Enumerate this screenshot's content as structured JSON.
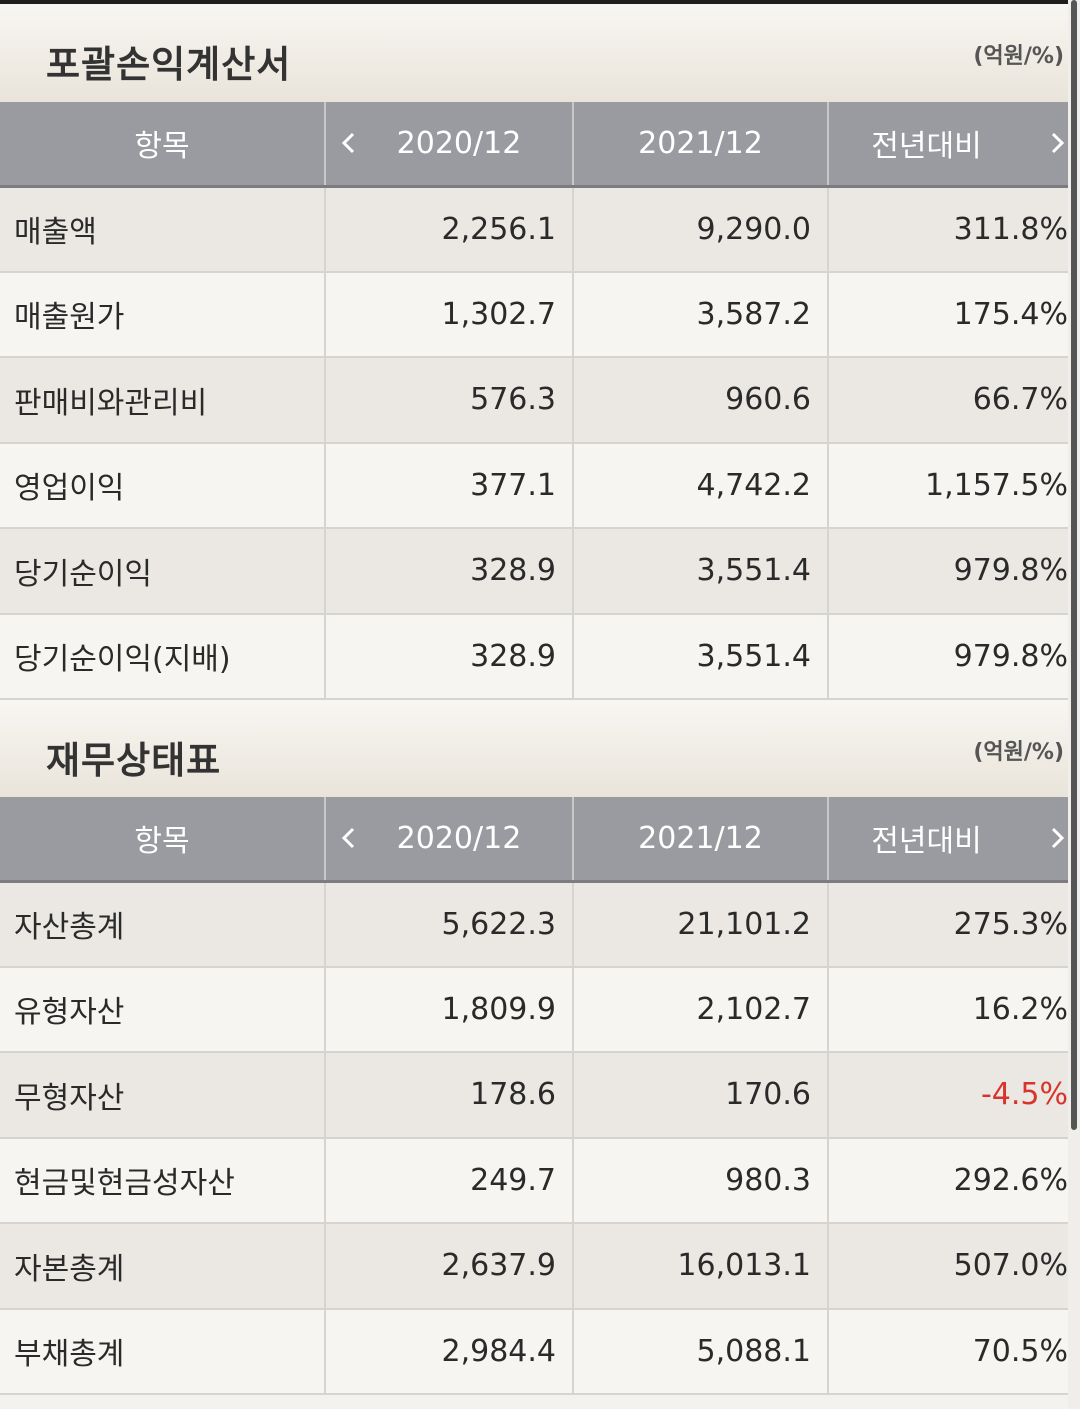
{
  "sections": [
    {
      "title": "포괄손익계산서",
      "unit": "(억원/%)",
      "headers": [
        "항목",
        "2020/12",
        "2021/12",
        "전년대비"
      ],
      "rows": [
        {
          "item": "매출액",
          "y2020": "2,256.1",
          "y2021": "9,290.0",
          "yoy": "311.8%"
        },
        {
          "item": "매출원가",
          "y2020": "1,302.7",
          "y2021": "3,587.2",
          "yoy": "175.4%"
        },
        {
          "item": "판매비와관리비",
          "y2020": "576.3",
          "y2021": "960.6",
          "yoy": "66.7%"
        },
        {
          "item": "영업이익",
          "y2020": "377.1",
          "y2021": "4,742.2",
          "yoy": "1,157.5%"
        },
        {
          "item": "당기순이익",
          "y2020": "328.9",
          "y2021": "3,551.4",
          "yoy": "979.8%"
        },
        {
          "item": "당기순이익(지배)",
          "y2020": "328.9",
          "y2021": "3,551.4",
          "yoy": "979.8%"
        }
      ]
    },
    {
      "title": "재무상태표",
      "unit": "(억원/%)",
      "headers": [
        "항목",
        "2020/12",
        "2021/12",
        "전년대비"
      ],
      "rows": [
        {
          "item": "자산총계",
          "y2020": "5,622.3",
          "y2021": "21,101.2",
          "yoy": "275.3%"
        },
        {
          "item": "유형자산",
          "y2020": "1,809.9",
          "y2021": "2,102.7",
          "yoy": "16.2%"
        },
        {
          "item": "무형자산",
          "y2020": "178.6",
          "y2021": "170.6",
          "yoy": "-4.5%"
        },
        {
          "item": "현금및현금성자산",
          "y2020": "249.7",
          "y2021": "980.3",
          "yoy": "292.6%"
        },
        {
          "item": "자본총계",
          "y2020": "2,637.9",
          "y2021": "16,013.1",
          "yoy": "507.0%"
        },
        {
          "item": "부채총계",
          "y2020": "2,984.4",
          "y2021": "5,088.1",
          "yoy": "70.5%"
        }
      ]
    }
  ],
  "colors": {
    "negative": "#d9342b",
    "header_bg": "#9a9ba0"
  },
  "icons": {
    "prev": "chevron-left-icon",
    "next": "chevron-right-icon"
  }
}
